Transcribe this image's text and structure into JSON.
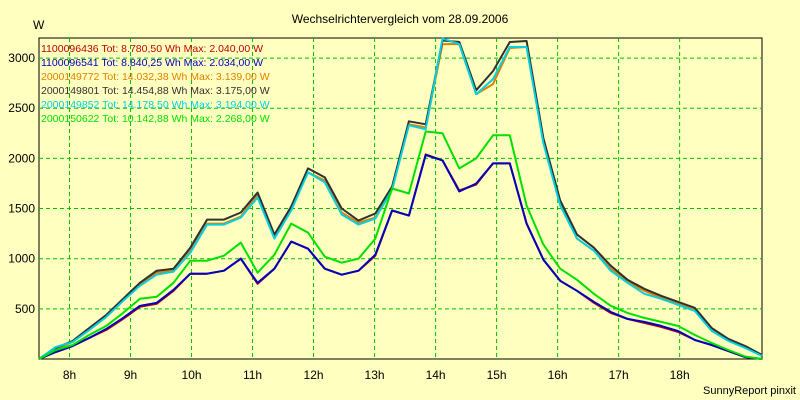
{
  "chart_data": {
    "type": "line",
    "title": "Wechselrichtervergleich vom 28.09.2006",
    "ylabel": "W",
    "xlabel": "",
    "footer": "SunnyReport pinxit",
    "x_range": [
      7.5,
      19.35
    ],
    "ylim": [
      0,
      3200
    ],
    "y_ticks": [
      500,
      1000,
      1500,
      2000,
      2500,
      3000
    ],
    "x_ticks": [
      {
        "v": 8,
        "label": "8h"
      },
      {
        "v": 9,
        "label": "9h"
      },
      {
        "v": 10,
        "label": "10h"
      },
      {
        "v": 11,
        "label": "11h"
      },
      {
        "v": 12,
        "label": "12h"
      },
      {
        "v": 13,
        "label": "13h"
      },
      {
        "v": 14,
        "label": "14h"
      },
      {
        "v": 15,
        "label": "15h"
      },
      {
        "v": 16,
        "label": "16h"
      },
      {
        "v": 17,
        "label": "17h"
      },
      {
        "v": 18,
        "label": "18h"
      }
    ],
    "grid": true,
    "legend_position": "top-left",
    "series": [
      {
        "name": "1100096436 Tot: 8.780,50 Wh Max: 2.040,00 W",
        "color": "#c00000",
        "values": [
          0,
          70,
          130,
          210,
          290,
          400,
          520,
          550,
          680,
          850,
          850,
          880,
          1000,
          750,
          900,
          1170,
          1100,
          900,
          840,
          880,
          1030,
          1480,
          1430,
          2040,
          1980,
          1680,
          1740,
          1950,
          1950,
          1350,
          990,
          780,
          680,
          560,
          460,
          400,
          360,
          320,
          270,
          190,
          140,
          80,
          20,
          0
        ]
      },
      {
        "name": "1100096541 Tot: 8.840,25 Wh Max: 2.034,00 W",
        "color": "#0000c0",
        "values": [
          0,
          70,
          130,
          210,
          300,
          410,
          530,
          560,
          690,
          850,
          850,
          880,
          1000,
          760,
          900,
          1170,
          1100,
          900,
          840,
          880,
          1040,
          1480,
          1430,
          2034,
          1980,
          1670,
          1750,
          1950,
          1950,
          1350,
          990,
          780,
          680,
          570,
          470,
          400,
          370,
          330,
          280,
          190,
          140,
          80,
          20,
          0
        ]
      },
      {
        "name": "2000149772 Tot: 14.032,38 Wh Max: 3.139,00 W",
        "color": "#e08000",
        "values": [
          0,
          100,
          170,
          300,
          420,
          580,
          740,
          860,
          880,
          1080,
          1350,
          1350,
          1420,
          1640,
          1220,
          1500,
          1860,
          1780,
          1460,
          1360,
          1410,
          1690,
          2340,
          2310,
          3139,
          3140,
          2640,
          2740,
          3100,
          3110,
          2160,
          1540,
          1200,
          1080,
          900,
          770,
          680,
          610,
          550,
          490,
          300,
          190,
          120,
          40
        ]
      },
      {
        "name": "2000149801 Tot: 14.454,88 Wh Max: 3.175,00 W",
        "color": "#303030",
        "values": [
          0,
          110,
          180,
          310,
          440,
          600,
          760,
          880,
          900,
          1110,
          1390,
          1390,
          1460,
          1660,
          1240,
          1520,
          1900,
          1810,
          1500,
          1380,
          1450,
          1720,
          2370,
          2340,
          3175,
          3160,
          2680,
          2870,
          3160,
          3170,
          2200,
          1580,
          1240,
          1110,
          930,
          790,
          700,
          630,
          570,
          510,
          310,
          200,
          130,
          40
        ]
      },
      {
        "name": "2000149852 Tot: 14.178,50 Wh Max: 3.194,00 W",
        "color": "#00d0e0",
        "values": [
          0,
          120,
          170,
          290,
          420,
          580,
          730,
          840,
          870,
          1060,
          1340,
          1340,
          1410,
          1610,
          1200,
          1480,
          1860,
          1760,
          1440,
          1340,
          1400,
          1690,
          2330,
          2290,
          3194,
          3140,
          2640,
          2790,
          3110,
          3110,
          2150,
          1530,
          1200,
          1080,
          880,
          760,
          650,
          600,
          540,
          480,
          280,
          180,
          110,
          30
        ]
      },
      {
        "name": "2000150622 Tot: 10.142,88 Wh Max: 2.268,00 W",
        "color": "#00e000",
        "values": [
          0,
          90,
          140,
          240,
          330,
          460,
          600,
          620,
          760,
          980,
          980,
          1030,
          1160,
          860,
          1040,
          1350,
          1260,
          1020,
          960,
          1000,
          1200,
          1700,
          1650,
          2268,
          2250,
          1900,
          2000,
          2230,
          2230,
          1530,
          1140,
          900,
          790,
          650,
          530,
          460,
          410,
          370,
          330,
          240,
          160,
          90,
          25,
          0
        ]
      }
    ]
  }
}
